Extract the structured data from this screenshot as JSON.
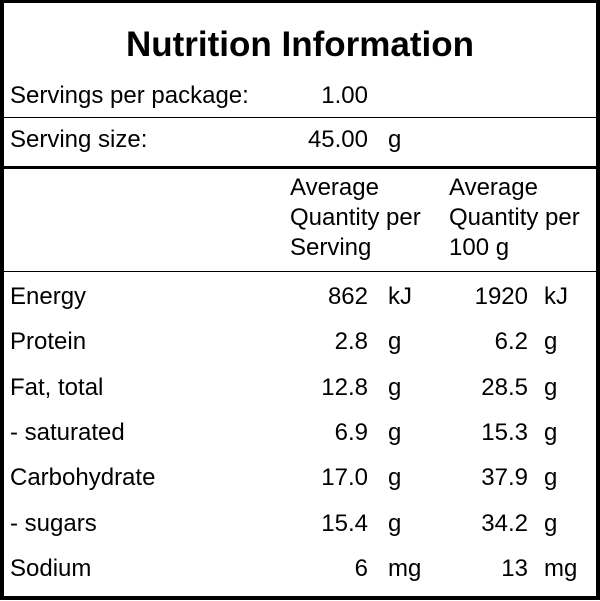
{
  "title": "Nutrition Information",
  "servings": {
    "label": "Servings per package:",
    "value": "1.00",
    "unit": ""
  },
  "serving_size": {
    "label": "Serving size:",
    "value": "45.00",
    "unit": "g"
  },
  "columns": {
    "per_serving": [
      "Average",
      "Quantity per",
      "Serving"
    ],
    "per_100g": [
      "Average",
      "Quantity per",
      "100 g"
    ]
  },
  "rows": [
    {
      "name": "Energy",
      "serving_value": "862",
      "serving_unit": "kJ",
      "per100_value": "1920",
      "per100_unit": "kJ"
    },
    {
      "name": "Protein",
      "serving_value": "2.8",
      "serving_unit": "g",
      "per100_value": "6.2",
      "per100_unit": "g"
    },
    {
      "name": "Fat, total",
      "serving_value": "12.8",
      "serving_unit": "g",
      "per100_value": "28.5",
      "per100_unit": "g"
    },
    {
      "name": "- saturated",
      "serving_value": "6.9",
      "serving_unit": "g",
      "per100_value": "15.3",
      "per100_unit": "g"
    },
    {
      "name": "Carbohydrate",
      "serving_value": "17.0",
      "serving_unit": "g",
      "per100_value": "37.9",
      "per100_unit": "g"
    },
    {
      "name": "- sugars",
      "serving_value": "15.4",
      "serving_unit": "g",
      "per100_value": "34.2",
      "per100_unit": "g"
    },
    {
      "name": "Sodium",
      "serving_value": "6",
      "serving_unit": "mg",
      "per100_value": "13",
      "per100_unit": "mg"
    }
  ]
}
